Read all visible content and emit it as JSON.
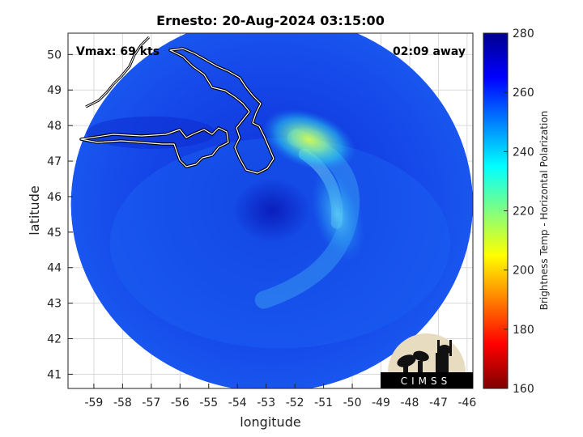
{
  "chart_data": {
    "type": "heatmap",
    "title": "Ernesto: 20-Aug-2024 03:15:00",
    "xlabel": "longitude",
    "ylabel": "latitude",
    "xlim": [
      -59.9,
      -45.8
    ],
    "ylim": [
      40.6,
      50.6
    ],
    "x_ticks": [
      -59,
      -58,
      -57,
      -56,
      -55,
      -54,
      -53,
      -52,
      -51,
      -50,
      -49,
      -48,
      -47,
      -46
    ],
    "y_ticks": [
      41,
      42,
      43,
      44,
      45,
      46,
      47,
      48,
      49,
      50
    ],
    "grid": true,
    "annotations": {
      "vmax": "Vmax: 69 kts",
      "time_away": "02:09 away"
    },
    "storm_center": {
      "lon": -52.8,
      "lat": 45.6
    },
    "swath": {
      "center_lon": -52.8,
      "center_lat": 45.8,
      "radius_lon": 7.0,
      "radius_lat": 5.3
    },
    "colorbar": {
      "label": "Brightness Temp - Horizontal Polarization",
      "range": [
        160,
        280
      ],
      "ticks": [
        160,
        180,
        200,
        220,
        240,
        260,
        280
      ],
      "colormap": [
        "#7f0000",
        "#ff0000",
        "#ff8000",
        "#ffff00",
        "#80ff80",
        "#00ffff",
        "#0080ff",
        "#0000ff",
        "#00008f"
      ]
    },
    "features": [
      {
        "name": "warm band east of center",
        "lon": -51.5,
        "lat": 47.6,
        "value_k": 225
      },
      {
        "name": "spiral band south-east",
        "lon": -50.5,
        "lat": 45.5,
        "value_k": 245
      },
      {
        "name": "eye / core",
        "lon": -52.8,
        "lat": 45.6,
        "value_k": 268
      },
      {
        "name": "background ocean",
        "lon": -55.0,
        "lat": 43.0,
        "value_k": 260
      }
    ],
    "logo_text": "CIMSS"
  }
}
